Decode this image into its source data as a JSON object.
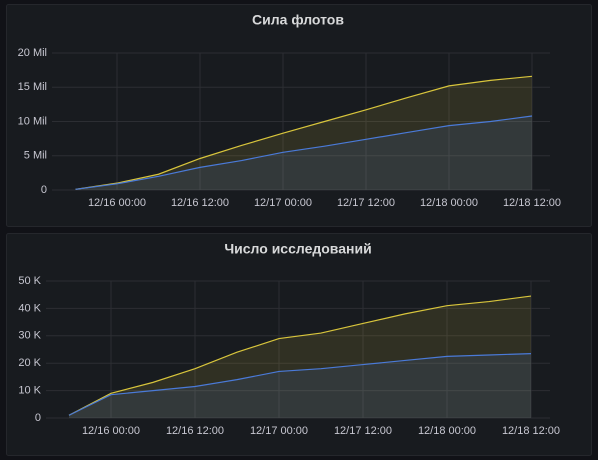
{
  "chart_data": [
    {
      "type": "line",
      "title": "Сила флотов",
      "categories": [
        null,
        "12/16 00:00",
        null,
        "12/16 12:00",
        null,
        "12/17 00:00",
        null,
        "12/17 12:00",
        null,
        "12/18 00:00",
        null,
        "12/18 12:00"
      ],
      "series": [
        {
          "color": "#d8c53c",
          "values": [
            100000,
            1000000,
            2300000,
            4600000,
            6500000,
            8300000,
            10000000,
            11700000,
            13500000,
            15200000,
            16000000,
            16600000
          ]
        },
        {
          "color": "#4a7ad8",
          "values": [
            100000,
            900000,
            2000000,
            3300000,
            4300000,
            5500000,
            6400000,
            7400000,
            8400000,
            9400000,
            10000000,
            10800000
          ]
        }
      ],
      "ylim": [
        0,
        20000000
      ],
      "yticks": [
        0,
        {
          "value": 5000000,
          "label": "5 Mil"
        },
        {
          "value": 10000000,
          "label": "10 Mil"
        },
        {
          "value": 15000000,
          "label": "15 Mil"
        },
        {
          "value": 20000000,
          "label": "20 Mil"
        }
      ],
      "grid": true,
      "fill": true
    },
    {
      "type": "line",
      "title": "Число исследований",
      "categories": [
        null,
        "12/16 00:00",
        null,
        "12/16 12:00",
        null,
        "12/17 00:00",
        null,
        "12/17 12:00",
        null,
        "12/18 00:00",
        null,
        "12/18 12:00"
      ],
      "series": [
        {
          "color": "#d8c53c",
          "values": [
            1000,
            9000,
            13000,
            18000,
            24000,
            29000,
            31000,
            34500,
            38000,
            41000,
            42500,
            44500
          ]
        },
        {
          "color": "#4a7ad8",
          "values": [
            1000,
            8500,
            10000,
            11500,
            14000,
            17000,
            18000,
            19500,
            21000,
            22500,
            23000,
            23500
          ]
        }
      ],
      "ylim": [
        0,
        50000
      ],
      "yticks": [
        0,
        {
          "value": 10000,
          "label": "10 K"
        },
        {
          "value": 20000,
          "label": "20 K"
        },
        {
          "value": 30000,
          "label": "30 K"
        },
        {
          "value": 40000,
          "label": "40 K"
        },
        {
          "value": 50000,
          "label": "50 K"
        }
      ],
      "grid": true,
      "fill": true
    }
  ]
}
